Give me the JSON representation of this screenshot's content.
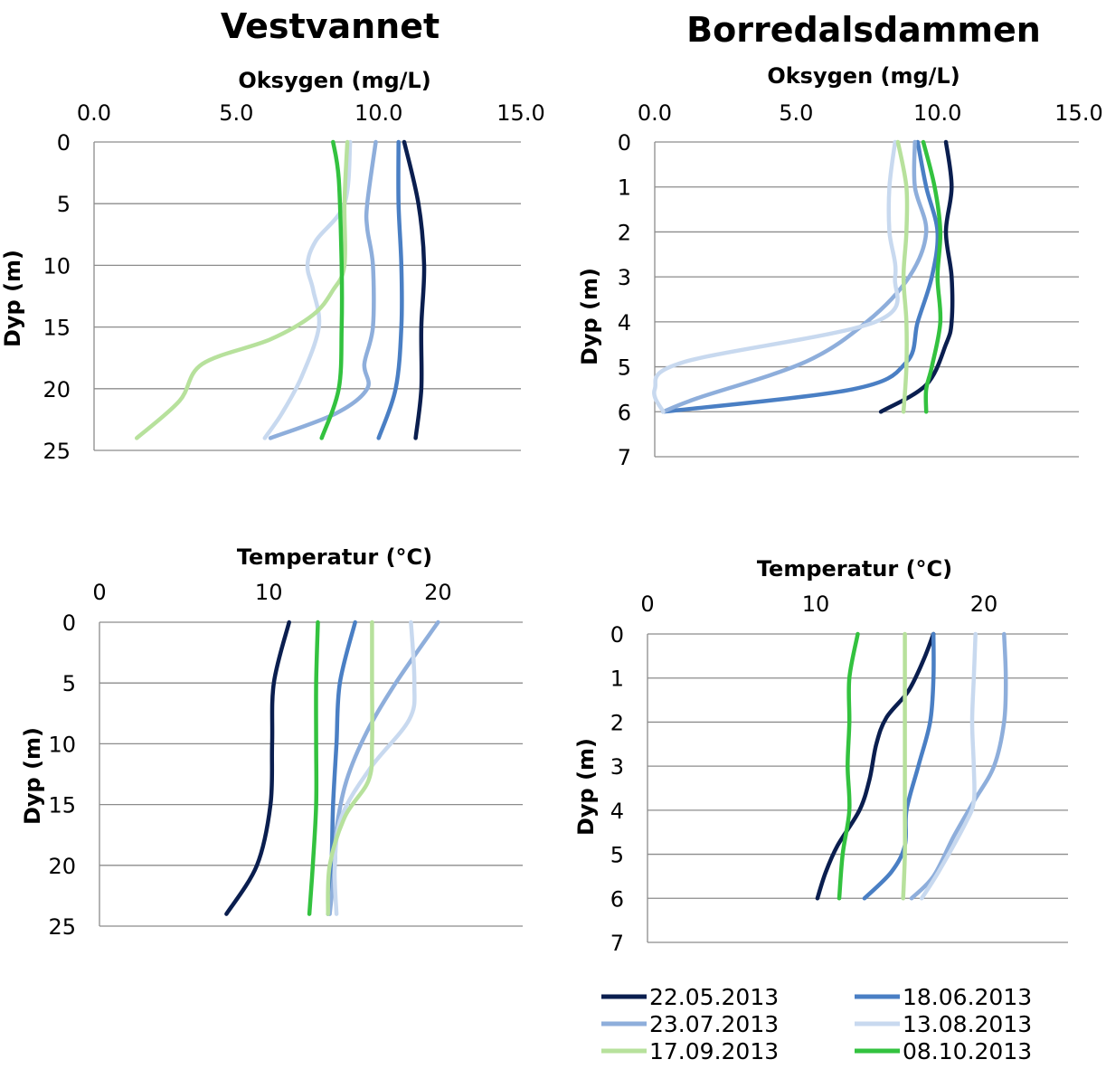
{
  "lakes": [
    "Vestvannet",
    "Borredalsdammen"
  ],
  "colors": {
    "22.05.2013": "#0a1e4f",
    "18.06.2013": "#4a7fc4",
    "23.07.2013": "#8eaedb",
    "13.08.2013": "#c8d9ef",
    "17.09.2013": "#b7e19c",
    "08.10.2013": "#33c23f",
    "grid": "#8c8c8c"
  },
  "legend": [
    "22.05.2013",
    "18.06.2013",
    "23.07.2013",
    "13.08.2013",
    "17.09.2013",
    "08.10.2013"
  ],
  "chart_data": [
    {
      "id": "vest-oxy",
      "type": "line",
      "lake": "Vestvannet",
      "xlabel": "Oksygen (mg/L)",
      "ylabel": "Dyp (m)",
      "xlim": [
        0,
        15
      ],
      "ylim": [
        0,
        25
      ],
      "xticks": [
        "0.0",
        "5.0",
        "10.0",
        "15.0"
      ],
      "xtick_values": [
        0,
        5,
        10,
        15
      ],
      "yticks": [
        0,
        5,
        10,
        15,
        20,
        25
      ],
      "x_axis_position": "top",
      "y_inverted": true,
      "grid": "horizontal",
      "series": [
        {
          "name": "22.05.2013",
          "points": [
            [
              10.9,
              0
            ],
            [
              11.4,
              5
            ],
            [
              11.6,
              10
            ],
            [
              11.5,
              15
            ],
            [
              11.5,
              20
            ],
            [
              11.3,
              24
            ]
          ]
        },
        {
          "name": "18.06.2013",
          "points": [
            [
              10.7,
              0
            ],
            [
              10.7,
              5
            ],
            [
              10.8,
              10
            ],
            [
              10.8,
              15
            ],
            [
              10.6,
              20
            ],
            [
              10.0,
              24
            ]
          ]
        },
        {
          "name": "23.07.2013",
          "points": [
            [
              9.9,
              0
            ],
            [
              9.6,
              5
            ],
            [
              9.6,
              7
            ],
            [
              9.8,
              10
            ],
            [
              9.8,
              15
            ],
            [
              9.5,
              18
            ],
            [
              9.6,
              20
            ],
            [
              8.5,
              22
            ],
            [
              6.2,
              24
            ]
          ]
        },
        {
          "name": "13.08.2013",
          "points": [
            [
              9.0,
              0
            ],
            [
              8.8,
              5
            ],
            [
              7.8,
              8
            ],
            [
              7.5,
              10
            ],
            [
              7.7,
              12
            ],
            [
              7.9,
              15
            ],
            [
              7.3,
              19
            ],
            [
              6.6,
              22
            ],
            [
              6.0,
              24
            ]
          ]
        },
        {
          "name": "17.09.2013",
          "points": [
            [
              8.9,
              0
            ],
            [
              8.8,
              5
            ],
            [
              8.8,
              10
            ],
            [
              8.4,
              12
            ],
            [
              7.7,
              14
            ],
            [
              6.2,
              16
            ],
            [
              3.8,
              18
            ],
            [
              3.0,
              21
            ],
            [
              1.5,
              24
            ]
          ]
        },
        {
          "name": "08.10.2013",
          "points": [
            [
              8.4,
              0
            ],
            [
              8.6,
              3
            ],
            [
              8.7,
              10
            ],
            [
              8.7,
              15
            ],
            [
              8.6,
              20
            ],
            [
              8.0,
              24
            ]
          ]
        }
      ]
    },
    {
      "id": "borr-oxy",
      "type": "line",
      "lake": "Borredalsdammen",
      "xlabel": "Oksygen (mg/L)",
      "ylabel": "Dyp (m)",
      "xlim": [
        0,
        15
      ],
      "ylim": [
        0,
        7
      ],
      "xticks": [
        "0.0",
        "5.0",
        "10.0",
        "15.0"
      ],
      "xtick_values": [
        0,
        5,
        10,
        15
      ],
      "yticks": [
        0,
        1,
        2,
        3,
        4,
        5,
        6,
        7
      ],
      "x_axis_position": "top",
      "y_inverted": true,
      "grid": "horizontal",
      "series": [
        {
          "name": "22.05.2013",
          "points": [
            [
              10.3,
              0
            ],
            [
              10.5,
              1
            ],
            [
              10.3,
              2
            ],
            [
              10.5,
              3
            ],
            [
              10.5,
              4
            ],
            [
              10.3,
              4.5
            ],
            [
              9.6,
              5.4
            ],
            [
              8.0,
              6
            ]
          ]
        },
        {
          "name": "18.06.2013",
          "points": [
            [
              9.3,
              0
            ],
            [
              9.6,
              1
            ],
            [
              10.0,
              2
            ],
            [
              9.8,
              3
            ],
            [
              9.3,
              4
            ],
            [
              8.9,
              4.9
            ],
            [
              7.0,
              5.5
            ],
            [
              0.3,
              6
            ]
          ]
        },
        {
          "name": "23.07.2013",
          "points": [
            [
              9.2,
              0
            ],
            [
              9.2,
              1
            ],
            [
              9.6,
              2
            ],
            [
              9.0,
              3
            ],
            [
              7.5,
              4
            ],
            [
              5.3,
              4.9
            ],
            [
              1.5,
              5.7
            ],
            [
              0.3,
              6
            ]
          ]
        },
        {
          "name": "13.08.2013",
          "points": [
            [
              8.5,
              0
            ],
            [
              8.3,
              1
            ],
            [
              8.3,
              2
            ],
            [
              8.5,
              3
            ],
            [
              7.8,
              4
            ],
            [
              1.0,
              4.9
            ],
            [
              0,
              5.5
            ],
            [
              0.3,
              6
            ]
          ]
        },
        {
          "name": "17.09.2013",
          "points": [
            [
              8.6,
              0
            ],
            [
              8.9,
              1
            ],
            [
              8.9,
              2
            ],
            [
              8.8,
              3
            ],
            [
              8.9,
              4
            ],
            [
              8.9,
              5
            ],
            [
              8.8,
              6
            ]
          ]
        },
        {
          "name": "08.10.2013",
          "points": [
            [
              9.5,
              0
            ],
            [
              9.9,
              1
            ],
            [
              10.1,
              2
            ],
            [
              10.0,
              3
            ],
            [
              10.1,
              4
            ],
            [
              9.8,
              5
            ],
            [
              9.6,
              5.5
            ],
            [
              9.6,
              6
            ]
          ]
        }
      ]
    },
    {
      "id": "vest-temp",
      "type": "line",
      "lake": "Vestvannet",
      "xlabel": "Temperatur (°C)",
      "ylabel": "Dyp (m)",
      "xlim": [
        0,
        25
      ],
      "ylim": [
        0,
        25
      ],
      "xticks": [
        "0",
        "10",
        "20"
      ],
      "xtick_values": [
        0,
        10,
        20
      ],
      "yticks": [
        0,
        5,
        10,
        15,
        20,
        25
      ],
      "x_axis_position": "top",
      "y_inverted": true,
      "grid": "horizontal",
      "series": [
        {
          "name": "22.05.2013",
          "points": [
            [
              11.2,
              0
            ],
            [
              10.3,
              5
            ],
            [
              10.2,
              10
            ],
            [
              10.1,
              15
            ],
            [
              9.3,
              20
            ],
            [
              7.5,
              24
            ]
          ]
        },
        {
          "name": "18.06.2013",
          "points": [
            [
              15.1,
              0
            ],
            [
              14.2,
              5
            ],
            [
              14.0,
              10
            ],
            [
              13.8,
              15
            ],
            [
              13.7,
              20
            ],
            [
              13.5,
              24
            ]
          ]
        },
        {
          "name": "23.07.2013",
          "points": [
            [
              20.0,
              0
            ],
            [
              17.5,
              5
            ],
            [
              15.8,
              9
            ],
            [
              14.6,
              13
            ],
            [
              14.0,
              17
            ],
            [
              13.9,
              20
            ],
            [
              13.6,
              24
            ]
          ]
        },
        {
          "name": "13.08.2013",
          "points": [
            [
              18.4,
              0
            ],
            [
              18.6,
              5
            ],
            [
              18.3,
              8
            ],
            [
              16.0,
              12
            ],
            [
              14.3,
              16
            ],
            [
              13.9,
              20
            ],
            [
              14.0,
              24
            ]
          ]
        },
        {
          "name": "17.09.2013",
          "points": [
            [
              16.1,
              0
            ],
            [
              16.1,
              5
            ],
            [
              16.1,
              10
            ],
            [
              15.9,
              13
            ],
            [
              14.5,
              16
            ],
            [
              13.6,
              20
            ],
            [
              13.5,
              24
            ]
          ]
        },
        {
          "name": "08.10.2013",
          "points": [
            [
              12.9,
              0
            ],
            [
              12.8,
              5
            ],
            [
              12.8,
              10
            ],
            [
              12.8,
              15
            ],
            [
              12.6,
              20
            ],
            [
              12.4,
              24
            ]
          ]
        }
      ]
    },
    {
      "id": "borr-temp",
      "type": "line",
      "lake": "Borredalsdammen",
      "xlabel": "Temperatur (°C)",
      "ylabel": "Dyp (m)",
      "xlim": [
        0,
        25
      ],
      "ylim": [
        0,
        7
      ],
      "xticks": [
        "0",
        "10",
        "20"
      ],
      "xtick_values": [
        0,
        10,
        20
      ],
      "yticks": [
        0,
        1,
        2,
        3,
        4,
        5,
        6,
        7
      ],
      "x_axis_position": "top",
      "y_inverted": true,
      "grid": "horizontal",
      "series": [
        {
          "name": "22.05.2013",
          "points": [
            [
              17.0,
              0
            ],
            [
              16.4,
              0.6
            ],
            [
              15.5,
              1.3
            ],
            [
              14.2,
              1.9
            ],
            [
              13.6,
              2.5
            ],
            [
              13.2,
              3.3
            ],
            [
              12.6,
              4.0
            ],
            [
              11.3,
              4.8
            ],
            [
              10.6,
              5.4
            ],
            [
              10.1,
              6
            ]
          ]
        },
        {
          "name": "18.06.2013",
          "points": [
            [
              17.0,
              0
            ],
            [
              17.0,
              1
            ],
            [
              16.8,
              2
            ],
            [
              16.1,
              3
            ],
            [
              15.4,
              4
            ],
            [
              15.3,
              4.8
            ],
            [
              14.5,
              5.4
            ],
            [
              12.9,
              6
            ]
          ]
        },
        {
          "name": "23.07.2013",
          "points": [
            [
              21.2,
              0
            ],
            [
              21.3,
              1
            ],
            [
              21.2,
              2
            ],
            [
              20.6,
              3
            ],
            [
              19.4,
              3.8
            ],
            [
              18.2,
              4.6
            ],
            [
              17.0,
              5.5
            ],
            [
              15.7,
              6
            ]
          ]
        },
        {
          "name": "13.08.2013",
          "points": [
            [
              19.5,
              0
            ],
            [
              19.4,
              1
            ],
            [
              19.3,
              2
            ],
            [
              19.4,
              3
            ],
            [
              19.4,
              3.8
            ],
            [
              18.9,
              4.3
            ],
            [
              17.3,
              5.4
            ],
            [
              16.3,
              6
            ]
          ]
        },
        {
          "name": "17.09.2013",
          "points": [
            [
              15.3,
              0
            ],
            [
              15.3,
              1
            ],
            [
              15.3,
              2
            ],
            [
              15.3,
              3
            ],
            [
              15.3,
              4
            ],
            [
              15.3,
              5
            ],
            [
              15.2,
              6
            ]
          ]
        },
        {
          "name": "08.10.2013",
          "points": [
            [
              12.5,
              0
            ],
            [
              12.0,
              1
            ],
            [
              12.0,
              2
            ],
            [
              11.9,
              3
            ],
            [
              12.0,
              4
            ],
            [
              11.6,
              5
            ],
            [
              11.4,
              6
            ]
          ]
        }
      ]
    }
  ]
}
